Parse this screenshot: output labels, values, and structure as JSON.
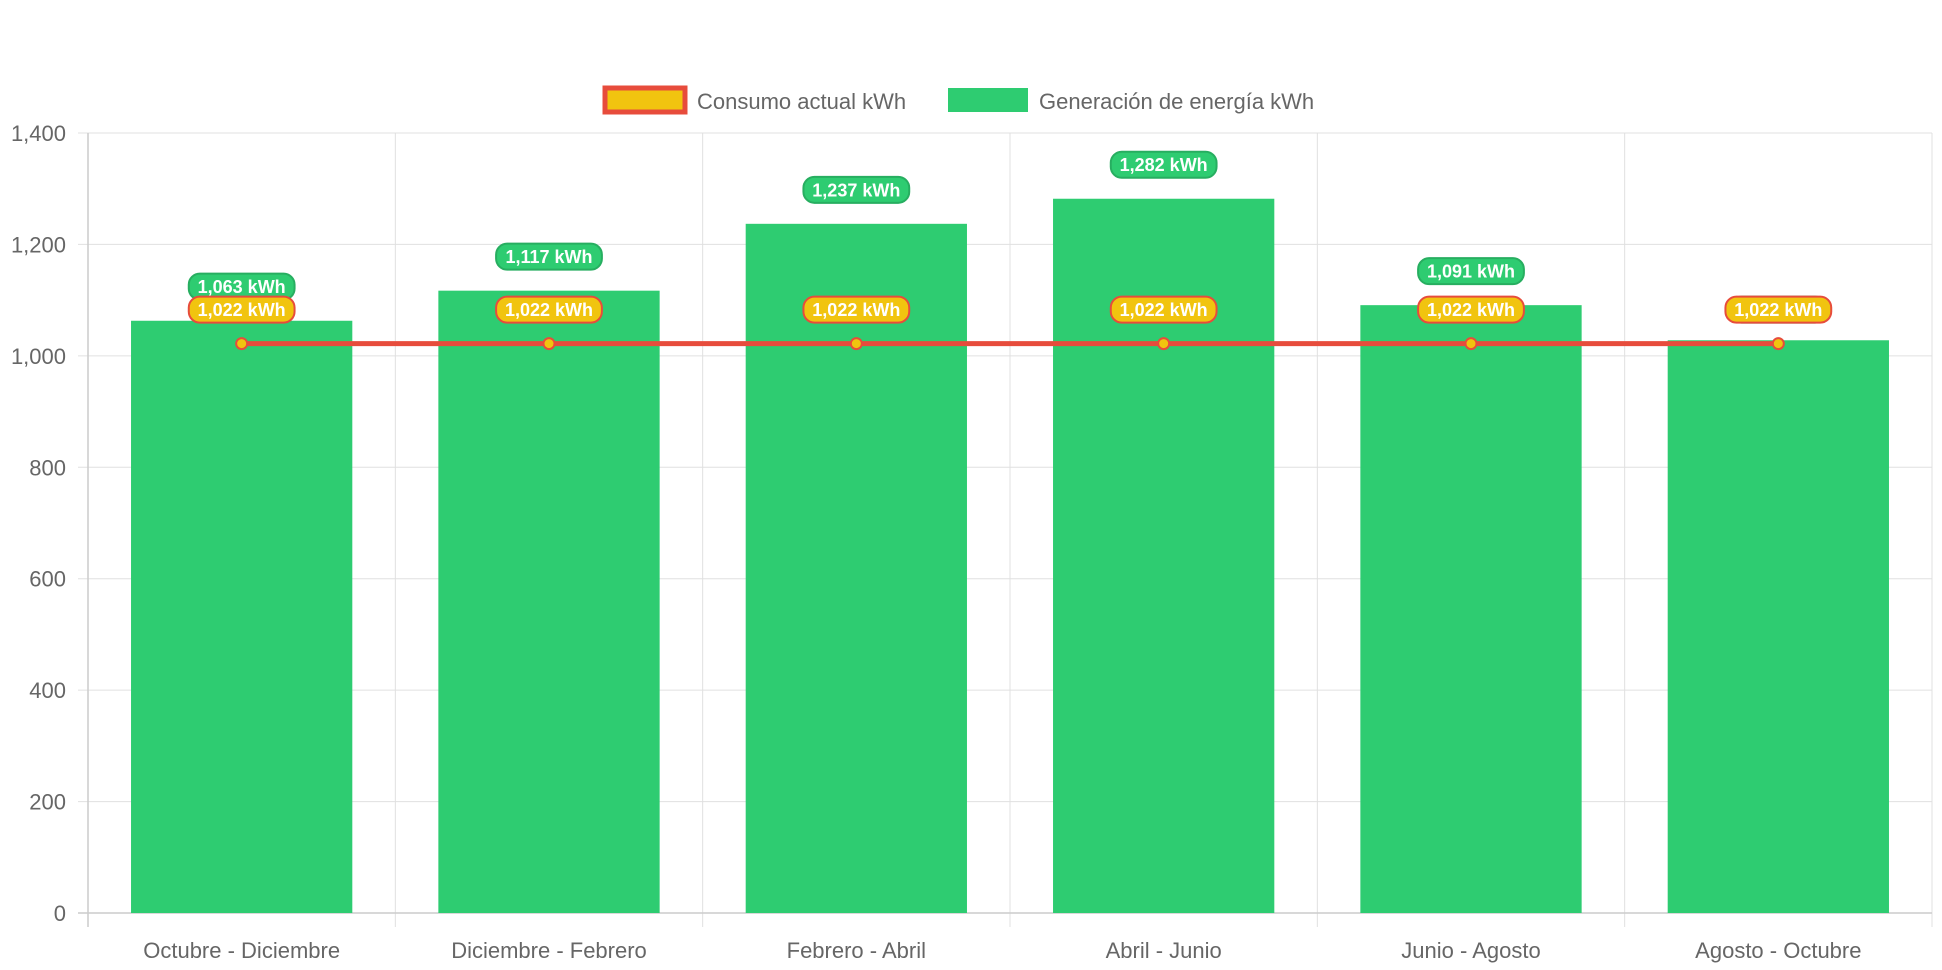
{
  "chart_data": {
    "type": "bar",
    "categories": [
      "Octubre - Diciembre",
      "Diciembre - Febrero",
      "Febrero - Abril",
      "Abril - Junio",
      "Junio - Agosto",
      "Agosto - Octubre"
    ],
    "series": [
      {
        "name": "Generación de energía kWh",
        "type": "bar",
        "values": [
          1063,
          1117,
          1237,
          1282,
          1091,
          1028
        ],
        "labels": [
          "1,063 kWh",
          "1,117 kWh",
          "1,237 kWh",
          "1,282 kWh",
          "1,091 kWh",
          ""
        ],
        "color": "#2ecc71"
      },
      {
        "name": "Consumo actual kWh",
        "type": "line",
        "values": [
          1022,
          1022,
          1022,
          1022,
          1022,
          1022
        ],
        "labels": [
          "1,022 kWh",
          "1,022 kWh",
          "1,022 kWh",
          "1,022 kWh",
          "1,022 kWh",
          "1,022 kWh"
        ],
        "color": "#f1c40f",
        "border_color": "#e74c3c"
      }
    ],
    "ylim": [
      0,
      1400
    ],
    "yticks": [
      "0",
      "200",
      "400",
      "600",
      "800",
      "1,000",
      "1,200",
      "1,400"
    ],
    "ytick_values": [
      0,
      200,
      400,
      600,
      800,
      1000,
      1200,
      1400
    ],
    "grid": true,
    "legend_position": "top",
    "legend": [
      "Consumo actual kWh",
      "Generación de energía kWh"
    ]
  }
}
